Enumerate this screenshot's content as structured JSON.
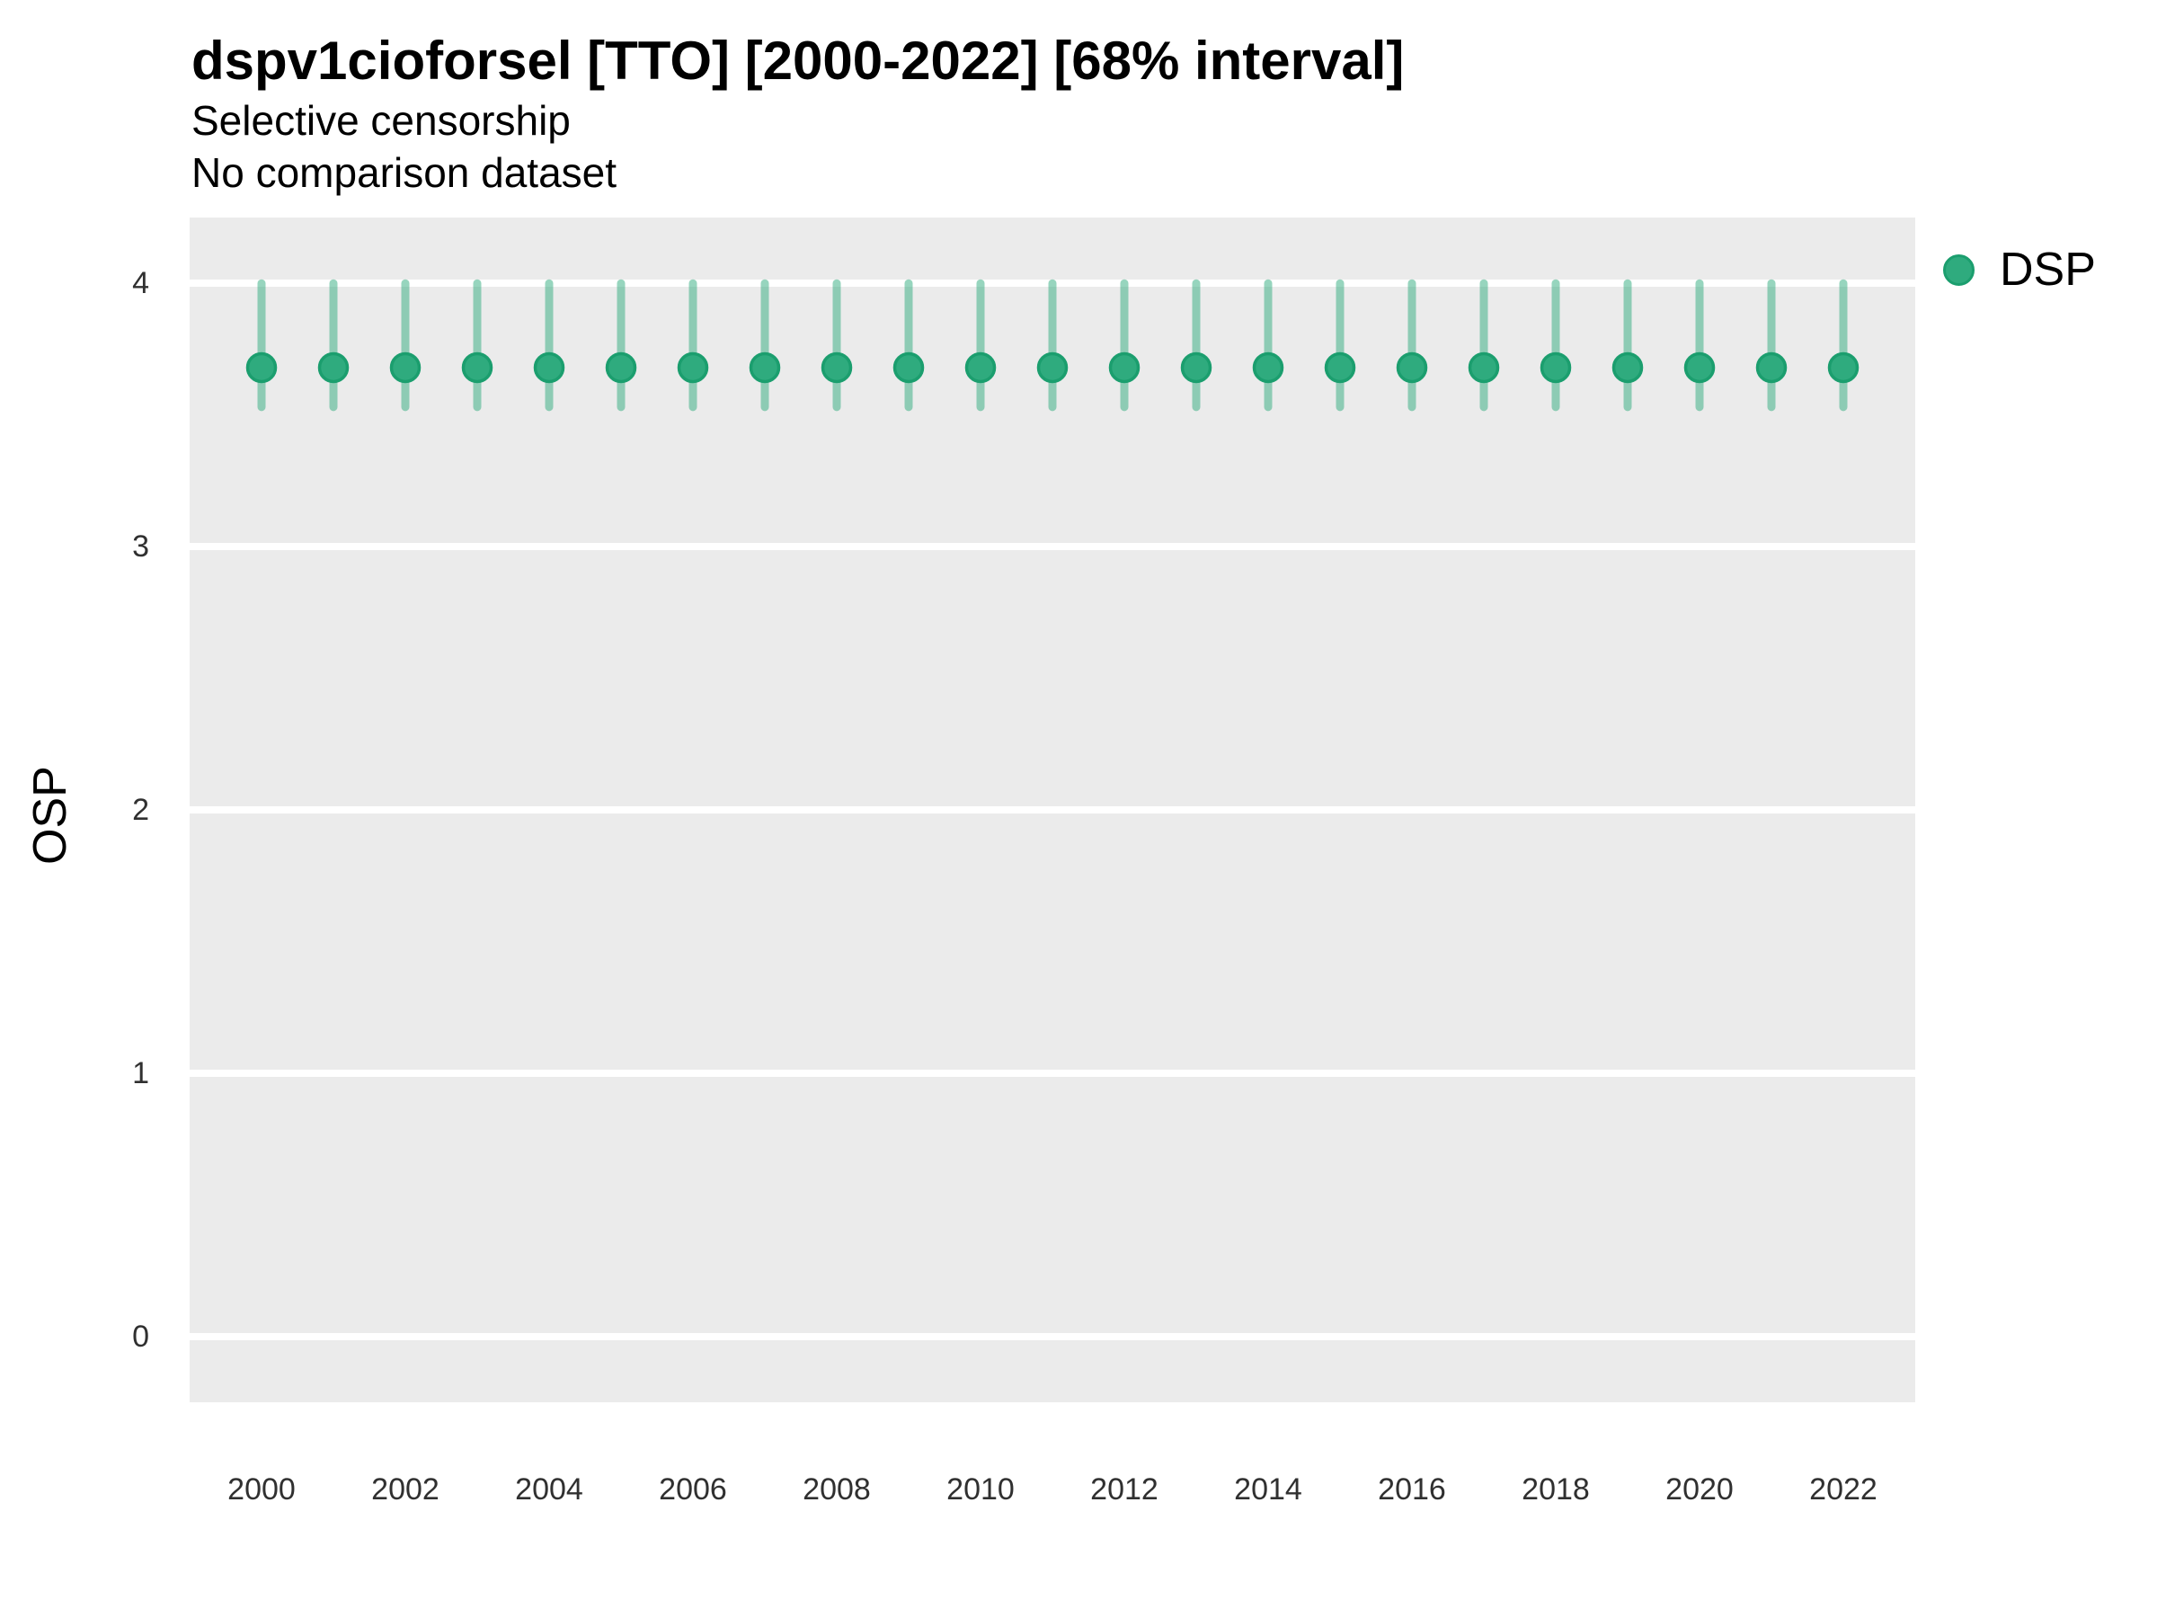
{
  "header": {
    "title": "dspv1cioforsel [TTO] [2000-2022] [68% interval]",
    "subtitle_line1": "Selective censorship",
    "subtitle_line2": "No comparison dataset"
  },
  "legend": {
    "label": "DSP"
  },
  "axes": {
    "y_title": "OSP",
    "y_tick_labels": [
      "0",
      "1",
      "2",
      "3",
      "4"
    ],
    "x_tick_labels": [
      "2000",
      "2002",
      "2004",
      "2006",
      "2008",
      "2010",
      "2012",
      "2014",
      "2016",
      "2018",
      "2020",
      "2022"
    ]
  },
  "colors": {
    "panel_bg": "#EBEBEB",
    "gridline": "#FFFFFF",
    "point_fill": "#2FAB7E",
    "point_stroke": "#1B9E6E",
    "interval_line": "rgba(47,171,126,0.5)",
    "title_text": "#000000",
    "tick_text": "#303030"
  },
  "chart_data": {
    "type": "scatter",
    "subtype": "pointrange",
    "title": "dspv1cioforsel [TTO] [2000-2022] [68% interval]",
    "subtitle": [
      "Selective censorship",
      "No comparison dataset"
    ],
    "xlabel": "",
    "ylabel": "OSP",
    "interval": "68%",
    "grid": "horizontal-major-only",
    "legend_position": "right-top",
    "xlim": [
      1999,
      2023
    ],
    "ylim": [
      -0.25,
      4.25
    ],
    "yticks": [
      0,
      1,
      2,
      3,
      4
    ],
    "xticks": [
      2000,
      2002,
      2004,
      2006,
      2008,
      2010,
      2012,
      2014,
      2016,
      2018,
      2020,
      2022
    ],
    "x": [
      2000,
      2001,
      2002,
      2003,
      2004,
      2005,
      2006,
      2007,
      2008,
      2009,
      2010,
      2011,
      2012,
      2013,
      2014,
      2015,
      2016,
      2017,
      2018,
      2019,
      2020,
      2021,
      2022
    ],
    "series": [
      {
        "name": "DSP",
        "estimate": [
          3.68,
          3.68,
          3.68,
          3.68,
          3.68,
          3.68,
          3.68,
          3.68,
          3.68,
          3.68,
          3.68,
          3.68,
          3.68,
          3.68,
          3.68,
          3.68,
          3.68,
          3.68,
          3.68,
          3.68,
          3.68,
          3.68,
          3.68
        ],
        "lower": [
          3.53,
          3.53,
          3.53,
          3.53,
          3.53,
          3.53,
          3.53,
          3.53,
          3.53,
          3.53,
          3.53,
          3.53,
          3.53,
          3.53,
          3.53,
          3.53,
          3.53,
          3.53,
          3.53,
          3.53,
          3.53,
          3.53,
          3.53
        ],
        "upper": [
          4.0,
          4.0,
          4.0,
          4.0,
          4.0,
          4.0,
          4.0,
          4.0,
          4.0,
          4.0,
          4.0,
          4.0,
          4.0,
          4.0,
          4.0,
          4.0,
          4.0,
          4.0,
          4.0,
          4.0,
          4.0,
          4.0,
          4.0
        ]
      }
    ]
  }
}
